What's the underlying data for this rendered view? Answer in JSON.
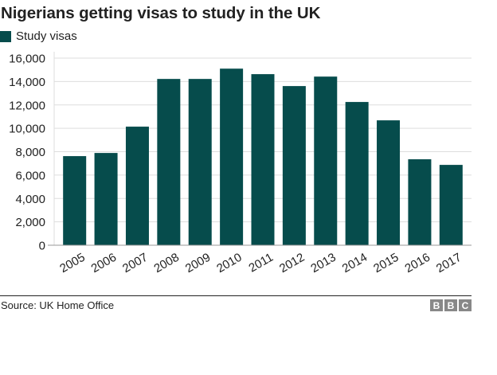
{
  "header": {
    "title": "Nigerians getting visas to study in the UK"
  },
  "legend": {
    "items": [
      {
        "label": "Study visas",
        "color": "#064C4C"
      }
    ]
  },
  "footer": {
    "source": "Source: UK Home Office",
    "logo_letters": [
      "B",
      "B",
      "C"
    ]
  },
  "colors": {
    "bar": "#064C4C",
    "grid": "#DDDDDD",
    "axis": "#999999",
    "text": "#222222",
    "logo": "#888888"
  },
  "chart_data": {
    "type": "bar",
    "title": "Nigerians getting visas to study in the UK",
    "xlabel": "",
    "ylabel": "",
    "categories": [
      "2005",
      "2006",
      "2007",
      "2008",
      "2009",
      "2010",
      "2011",
      "2012",
      "2013",
      "2014",
      "2015",
      "2016",
      "2017"
    ],
    "series": [
      {
        "name": "Study visas",
        "values": [
          7620,
          7890,
          10140,
          14220,
          14220,
          15100,
          14630,
          13610,
          14420,
          12250,
          10680,
          7350,
          6870
        ]
      }
    ],
    "ylim": [
      0,
      16000
    ],
    "yticks": [
      0,
      2000,
      4000,
      6000,
      8000,
      10000,
      12000,
      14000,
      16000
    ],
    "ytick_labels": [
      "0",
      "2,000",
      "4,000",
      "6,000",
      "8,000",
      "10,000",
      "12,000",
      "14,000",
      "16,000"
    ],
    "grid": true,
    "legend_position": "top-left",
    "source": "UK Home Office"
  }
}
